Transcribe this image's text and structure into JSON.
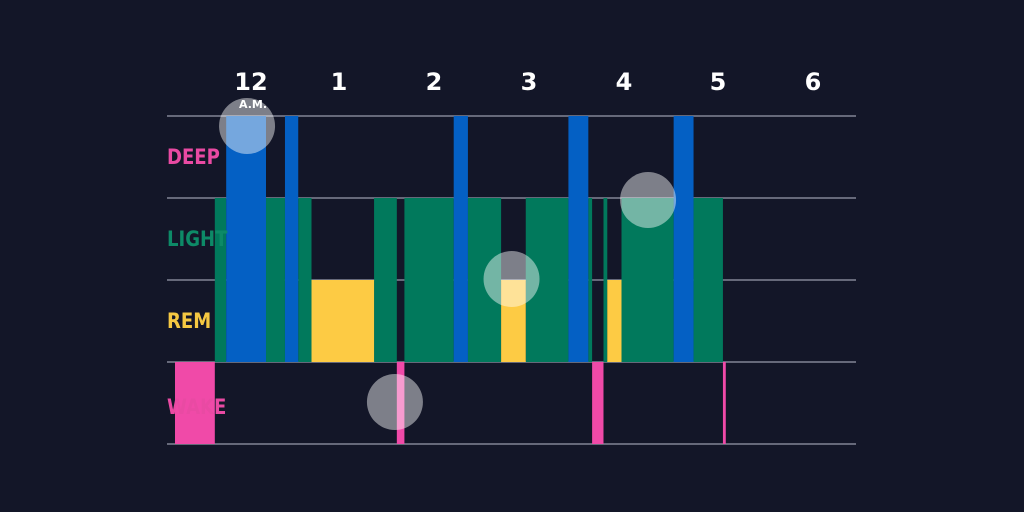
{
  "chart_data": {
    "type": "bar",
    "x_unit": "hours after 12 A.M.",
    "x_ticks": [
      {
        "value": 0,
        "label": "12",
        "sublabel": "A.M."
      },
      {
        "value": 1,
        "label": "1"
      },
      {
        "value": 2,
        "label": "2"
      },
      {
        "value": 3,
        "label": "3"
      },
      {
        "value": 4,
        "label": "4"
      },
      {
        "value": 5,
        "label": "5"
      },
      {
        "value": 6,
        "label": "6"
      }
    ],
    "stages": [
      {
        "key": "deep",
        "label": "DEEP",
        "label_color": "#e94aa3"
      },
      {
        "key": "light",
        "label": "LIGHT",
        "label_color": "#0d8a67"
      },
      {
        "key": "rem",
        "label": "REM",
        "label_color": "#f5c842"
      },
      {
        "key": "wake",
        "label": "WAKE",
        "label_color": "#e94aa3"
      }
    ],
    "stage_colors": {
      "deep": "#0460c4",
      "light": "#01795c",
      "rem": "#fdcb44",
      "wake": "#f04aa8"
    },
    "gridline_color": "#b9bccb",
    "segments": [
      {
        "stage": "wake",
        "start": -0.73,
        "end": -0.31
      },
      {
        "stage": "light",
        "start": -0.31,
        "end": -0.19
      },
      {
        "stage": "deep",
        "start": -0.19,
        "end": 0.23
      },
      {
        "stage": "light",
        "start": 0.23,
        "end": 0.43
      },
      {
        "stage": "deep",
        "start": 0.43,
        "end": 0.57
      },
      {
        "stage": "light",
        "start": 0.57,
        "end": 0.71
      },
      {
        "stage": "rem",
        "start": 0.71,
        "end": 1.37
      },
      {
        "stage": "light",
        "start": 1.37,
        "end": 1.61
      },
      {
        "stage": "wake",
        "start": 1.61,
        "end": 1.69
      },
      {
        "stage": "light",
        "start": 1.69,
        "end": 2.21
      },
      {
        "stage": "deep",
        "start": 2.21,
        "end": 2.36
      },
      {
        "stage": "light",
        "start": 2.36,
        "end": 2.71
      },
      {
        "stage": "rem",
        "start": 2.71,
        "end": 2.97
      },
      {
        "stage": "light",
        "start": 2.97,
        "end": 3.42
      },
      {
        "stage": "deep",
        "start": 3.42,
        "end": 3.63
      },
      {
        "stage": "light",
        "start": 3.63,
        "end": 3.67
      },
      {
        "stage": "wake",
        "start": 3.67,
        "end": 3.79
      },
      {
        "stage": "light",
        "start": 3.79,
        "end": 3.83
      },
      {
        "stage": "rem",
        "start": 3.83,
        "end": 3.98
      },
      {
        "stage": "light",
        "start": 3.98,
        "end": 4.53
      },
      {
        "stage": "deep",
        "start": 4.53,
        "end": 4.74
      },
      {
        "stage": "light",
        "start": 4.74,
        "end": 5.05
      },
      {
        "stage": "wake",
        "start": 5.05,
        "end": 5.08
      }
    ],
    "markers": [
      {
        "time": 0.03,
        "stage": "deep"
      },
      {
        "time": 1.59,
        "stage": "wake"
      },
      {
        "time": 2.82,
        "stage": "rem"
      },
      {
        "time": 4.26,
        "stage": "light"
      }
    ],
    "x_range": [
      -1.0,
      6.0
    ],
    "grid": "horizontal"
  }
}
